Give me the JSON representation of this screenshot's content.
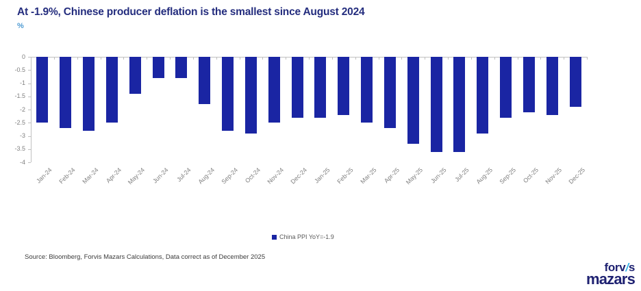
{
  "header": {
    "title": "At -1.9%, Chinese producer deflation is the smallest since August 2024",
    "unit_label": "%"
  },
  "chart_data": {
    "type": "bar",
    "title": "At -1.9%, Chinese producer deflation is the smallest since August 2024",
    "ylabel": "%",
    "xlabel": "",
    "categories": [
      "Jan-24",
      "Feb-24",
      "Mar-24",
      "Apr-24",
      "May-24",
      "Jun-24",
      "Jul-24",
      "Aug-24",
      "Sep-24",
      "Oct-24",
      "Nov-24",
      "Dec-24",
      "Jan-25",
      "Feb-25",
      "Mar-25",
      "Apr-25",
      "May-25",
      "Jun-25",
      "Jul-25",
      "Aug-25",
      "Sep-25",
      "Oct-25",
      "Nov-25",
      "Dec-25"
    ],
    "series": [
      {
        "name": "China PPI YoY",
        "values": [
          -2.5,
          -2.7,
          -2.8,
          -2.5,
          -1.4,
          -0.8,
          -0.8,
          -1.8,
          -2.8,
          -2.9,
          -2.5,
          -2.3,
          -2.3,
          -2.2,
          -2.5,
          -2.7,
          -3.3,
          -3.6,
          -3.6,
          -2.9,
          -2.3,
          -2.1,
          -2.2,
          -1.9
        ]
      }
    ],
    "ylim": [
      -4,
      0
    ],
    "yticks": [
      0,
      -0.5,
      -1,
      -1.5,
      -2,
      -2.5,
      -3,
      -3.5,
      -4
    ],
    "grid": false,
    "legend_position": "bottom"
  },
  "legend": {
    "label": "China PPI YoY=-1.9"
  },
  "source": {
    "text": "Source: Bloomberg, Forvis Mazars Calculations, Data correct as of December 2025"
  },
  "logo": {
    "word_top_left": "forv",
    "word_top_slash": "/",
    "word_top_right": "s",
    "word_bottom": "mazars"
  },
  "colors": {
    "title": "#242d7e",
    "unit": "#4f9bd3",
    "bar": "#1a25a3",
    "axis": "#c0c0c0",
    "tick_label": "#7f7f7f",
    "legend_text": "#595959",
    "source_text": "#3a3a3a",
    "logo_navy": "#1e2171",
    "logo_blue": "#3ab5e8"
  }
}
